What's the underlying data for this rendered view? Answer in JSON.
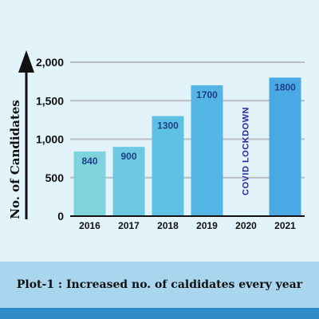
{
  "chart_data": {
    "type": "bar",
    "title": "",
    "ylabel": "No. of Candidates",
    "xlabel": "",
    "categories": [
      "2016",
      "2017",
      "2018",
      "2019",
      "2020",
      "2021"
    ],
    "values": [
      840,
      900,
      1300,
      1700,
      null,
      1800
    ],
    "value_labels": [
      "840",
      "900",
      "1300",
      "1700",
      "",
      "1800"
    ],
    "annotations": [
      {
        "category": "2020",
        "text": "COVID LOCKDOWN"
      }
    ],
    "ylim": [
      0,
      2000
    ],
    "y_ticks": [
      0,
      500,
      1000,
      1500,
      2000
    ],
    "y_tick_labels": [
      "0",
      "500",
      "1,000",
      "1,500",
      "2,000"
    ],
    "grid": true,
    "colors": {
      "bars": [
        "#7ed3dd",
        "#6cc9e1",
        "#5dc0e4",
        "#52b5e6",
        null,
        "#4aa9e4"
      ],
      "value_label": "#1f3f86",
      "annotation": "#2a2a9c",
      "grid": "#b9bec2",
      "axis": "#111111"
    }
  },
  "caption": "Plot-1 : Increased no. of caldidates every year"
}
